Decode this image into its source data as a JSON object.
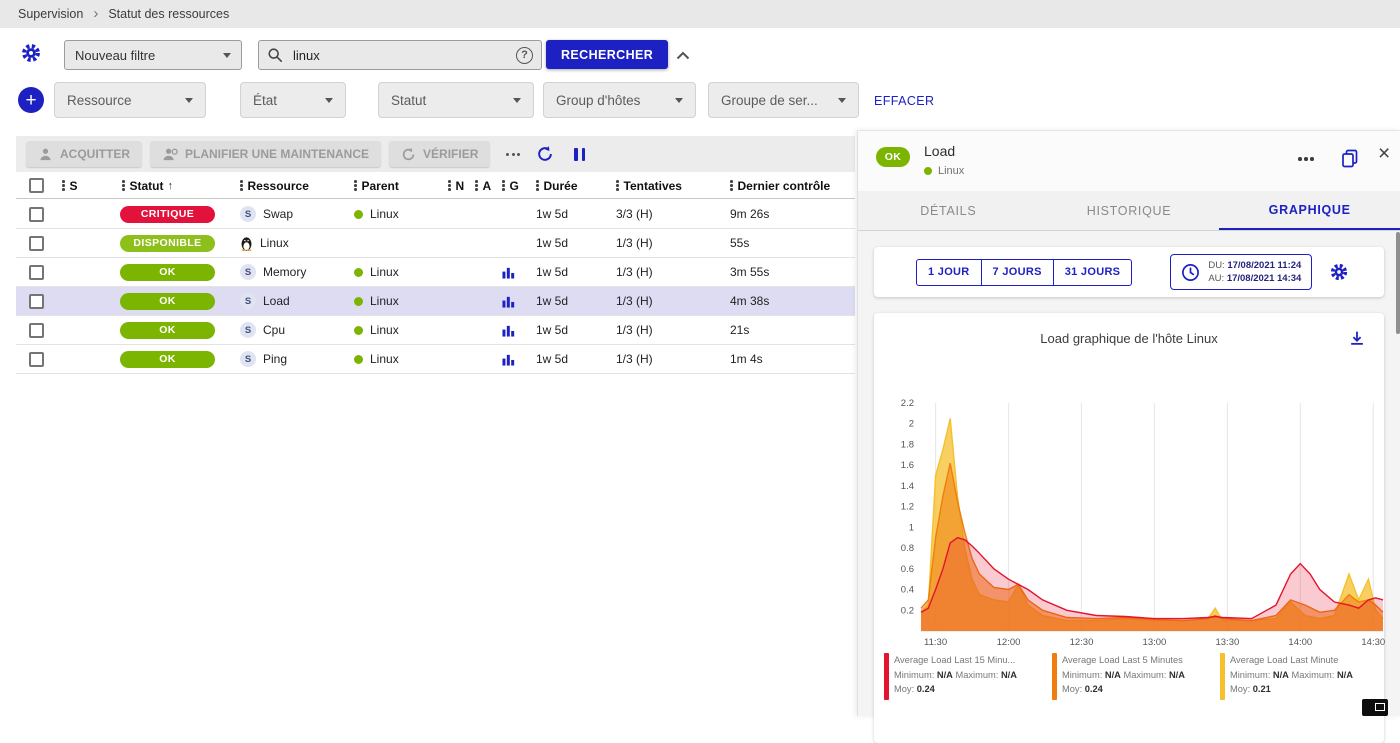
{
  "colors": {
    "accent": "#1d21c2",
    "critical": "#e2123c",
    "ok": "#7cb402",
    "available": "#8ec01c",
    "selected_row": "#dddcf3"
  },
  "breadcrumb": {
    "items": [
      {
        "label": "Supervision"
      },
      {
        "label": "Statut des ressources"
      }
    ]
  },
  "filterBar": {
    "filter_select_value": "Nouveau filtre",
    "search_value": "linux",
    "search_button": "RECHERCHER"
  },
  "criteriaBar": {
    "selects": [
      {
        "label": "Ressource"
      },
      {
        "label": "État"
      },
      {
        "label": "Statut"
      },
      {
        "label": "Group d'hôtes"
      },
      {
        "label": "Groupe de ser..."
      }
    ],
    "clear_label": "EFFACER"
  },
  "toolbar": {
    "acknowledge": "ACQUITTER",
    "maintenance": "PLANIFIER UNE MAINTENANCE",
    "check": "VÉRIFIER"
  },
  "icons": {
    "settings": "gear",
    "search": "magnifier",
    "help": "question-circle",
    "collapse": "chevron-up",
    "add-filter": "plus-circle",
    "acknowledge": "person",
    "maintenance": "person-clock",
    "check": "refresh",
    "more": "ellipsis",
    "refresh": "refresh",
    "pause": "pause",
    "graph": "bar-chart",
    "linux": "penguin",
    "copy": "copy",
    "close": "x",
    "clock": "clock",
    "download": "download",
    "fullscreen": "screen-corner"
  },
  "table": {
    "headers": {
      "state": "S",
      "status": "Statut",
      "resource": "Ressource",
      "parent": "Parent",
      "n": "N",
      "a": "A",
      "g": "G",
      "duration": "Durée",
      "tries": "Tentatives",
      "last_check": "Dernier contrôle"
    },
    "rows": [
      {
        "status": "CRITIQUE",
        "statusColor": "#e2123c",
        "icon": "service",
        "resource": "Swap",
        "parent": "Linux",
        "graph": false,
        "duration": "1w 5d",
        "tries": "3/3 (H)",
        "lastCheck": "9m 26s",
        "selected": false
      },
      {
        "status": "DISPONIBLE",
        "statusColor": "#8ec01c",
        "icon": "penguin",
        "resource": "Linux",
        "parent": "",
        "graph": false,
        "duration": "1w 5d",
        "tries": "1/3 (H)",
        "lastCheck": "55s",
        "selected": false
      },
      {
        "status": "OK",
        "statusColor": "#7cb402",
        "icon": "service",
        "resource": "Memory",
        "parent": "Linux",
        "graph": true,
        "duration": "1w 5d",
        "tries": "1/3 (H)",
        "lastCheck": "3m 55s",
        "selected": false
      },
      {
        "status": "OK",
        "statusColor": "#7cb402",
        "icon": "service",
        "resource": "Load",
        "parent": "Linux",
        "graph": true,
        "duration": "1w 5d",
        "tries": "1/3 (H)",
        "lastCheck": "4m 38s",
        "selected": true
      },
      {
        "status": "OK",
        "statusColor": "#7cb402",
        "icon": "service",
        "resource": "Cpu",
        "parent": "Linux",
        "graph": true,
        "duration": "1w 5d",
        "tries": "1/3 (H)",
        "lastCheck": "21s",
        "selected": false
      },
      {
        "status": "OK",
        "statusColor": "#7cb402",
        "icon": "service",
        "resource": "Ping",
        "parent": "Linux",
        "graph": true,
        "duration": "1w 5d",
        "tries": "1/3 (H)",
        "lastCheck": "1m 4s",
        "selected": false
      }
    ]
  },
  "panel": {
    "status": "OK",
    "title": "Load",
    "host": "Linux",
    "tabs": [
      {
        "label": "DÉTAILS",
        "active": false
      },
      {
        "label": "HISTORIQUE",
        "active": false
      },
      {
        "label": "GRAPHIQUE",
        "active": true
      }
    ],
    "ranges": [
      {
        "label": "1 JOUR"
      },
      {
        "label": "7 JOURS"
      },
      {
        "label": "31 JOURS"
      }
    ],
    "period": {
      "from_label": "DU:",
      "from_value": "17/08/2021 11:24",
      "to_label": "AU:",
      "to_value": "17/08/2021 14:34"
    }
  },
  "chart_data": {
    "type": "area",
    "title": "Load graphique de l'hôte Linux",
    "xlabel": "",
    "ylabel": "",
    "x_start": "11:24",
    "x_end": "14:34",
    "x_ticks": [
      "11:30",
      "12:00",
      "12:30",
      "13:00",
      "13:30",
      "14:00",
      "14:30"
    ],
    "x_tick_minutes": [
      6,
      36,
      66,
      96,
      126,
      156,
      186
    ],
    "x_range_minutes": [
      0,
      190
    ],
    "ylim": [
      0,
      2.2
    ],
    "y_ticks": [
      "0.2",
      "0.4",
      "0.6",
      "0.8",
      "1",
      "1.2",
      "1.4",
      "1.6",
      "1.8",
      "2",
      "2.2"
    ],
    "grid": "vertical",
    "legend_position": "bottom",
    "legend": {
      "min_label": "Minimum:",
      "max_label": "Maximum:",
      "avg_label": "Moy:"
    },
    "series": [
      {
        "name": "Average Load Last 15 Minu...",
        "color": "#e4132e",
        "fill_opacity": 0.22,
        "minimum": "N/A",
        "maximum": "N/A",
        "avg": "0.24",
        "points": [
          [
            0,
            0.18
          ],
          [
            3,
            0.22
          ],
          [
            6,
            0.4
          ],
          [
            9,
            0.6
          ],
          [
            12,
            0.85
          ],
          [
            15,
            0.9
          ],
          [
            18,
            0.88
          ],
          [
            21,
            0.82
          ],
          [
            24,
            0.75
          ],
          [
            30,
            0.6
          ],
          [
            36,
            0.5
          ],
          [
            40,
            0.45
          ],
          [
            44,
            0.4
          ],
          [
            50,
            0.3
          ],
          [
            60,
            0.2
          ],
          [
            72,
            0.15
          ],
          [
            84,
            0.14
          ],
          [
            96,
            0.12
          ],
          [
            108,
            0.12
          ],
          [
            118,
            0.13
          ],
          [
            121,
            0.14
          ],
          [
            124,
            0.13
          ],
          [
            136,
            0.12
          ],
          [
            146,
            0.25
          ],
          [
            152,
            0.55
          ],
          [
            156,
            0.65
          ],
          [
            160,
            0.55
          ],
          [
            164,
            0.4
          ],
          [
            170,
            0.28
          ],
          [
            176,
            0.25
          ],
          [
            180,
            0.22
          ],
          [
            184,
            0.3
          ],
          [
            187,
            0.32
          ],
          [
            190,
            0.3
          ]
        ]
      },
      {
        "name": "Average Load Last 5 Minutes",
        "color": "#ef7d10",
        "fill_opacity": 0.55,
        "minimum": "N/A",
        "maximum": "N/A",
        "avg": "0.24",
        "points": [
          [
            0,
            0.22
          ],
          [
            3,
            0.3
          ],
          [
            6,
            0.9
          ],
          [
            9,
            1.3
          ],
          [
            12,
            1.62
          ],
          [
            15,
            1.25
          ],
          [
            18,
            0.95
          ],
          [
            21,
            0.7
          ],
          [
            24,
            0.55
          ],
          [
            30,
            0.42
          ],
          [
            36,
            0.4
          ],
          [
            40,
            0.45
          ],
          [
            44,
            0.3
          ],
          [
            50,
            0.2
          ],
          [
            60,
            0.13
          ],
          [
            72,
            0.12
          ],
          [
            84,
            0.13
          ],
          [
            96,
            0.11
          ],
          [
            108,
            0.1
          ],
          [
            118,
            0.12
          ],
          [
            121,
            0.15
          ],
          [
            124,
            0.12
          ],
          [
            136,
            0.1
          ],
          [
            146,
            0.15
          ],
          [
            152,
            0.3
          ],
          [
            158,
            0.25
          ],
          [
            164,
            0.18
          ],
          [
            170,
            0.2
          ],
          [
            176,
            0.35
          ],
          [
            180,
            0.28
          ],
          [
            184,
            0.3
          ],
          [
            187,
            0.25
          ],
          [
            190,
            0.18
          ]
        ]
      },
      {
        "name": "Average Load Last Minute",
        "color": "#f5c02c",
        "fill_opacity": 0.75,
        "minimum": "N/A",
        "maximum": "N/A",
        "avg": "0.21",
        "points": [
          [
            0,
            0.18
          ],
          [
            3,
            0.25
          ],
          [
            6,
            1.5
          ],
          [
            9,
            1.75
          ],
          [
            12,
            2.05
          ],
          [
            15,
            1.3
          ],
          [
            18,
            0.8
          ],
          [
            21,
            0.5
          ],
          [
            24,
            0.35
          ],
          [
            30,
            0.3
          ],
          [
            36,
            0.28
          ],
          [
            40,
            0.45
          ],
          [
            44,
            0.25
          ],
          [
            50,
            0.15
          ],
          [
            60,
            0.1
          ],
          [
            72,
            0.1
          ],
          [
            84,
            0.12
          ],
          [
            96,
            0.1
          ],
          [
            108,
            0.1
          ],
          [
            118,
            0.12
          ],
          [
            121,
            0.22
          ],
          [
            124,
            0.1
          ],
          [
            136,
            0.1
          ],
          [
            146,
            0.12
          ],
          [
            152,
            0.28
          ],
          [
            158,
            0.15
          ],
          [
            164,
            0.12
          ],
          [
            170,
            0.15
          ],
          [
            176,
            0.55
          ],
          [
            180,
            0.3
          ],
          [
            184,
            0.5
          ],
          [
            187,
            0.2
          ],
          [
            190,
            0.12
          ]
        ]
      }
    ]
  }
}
